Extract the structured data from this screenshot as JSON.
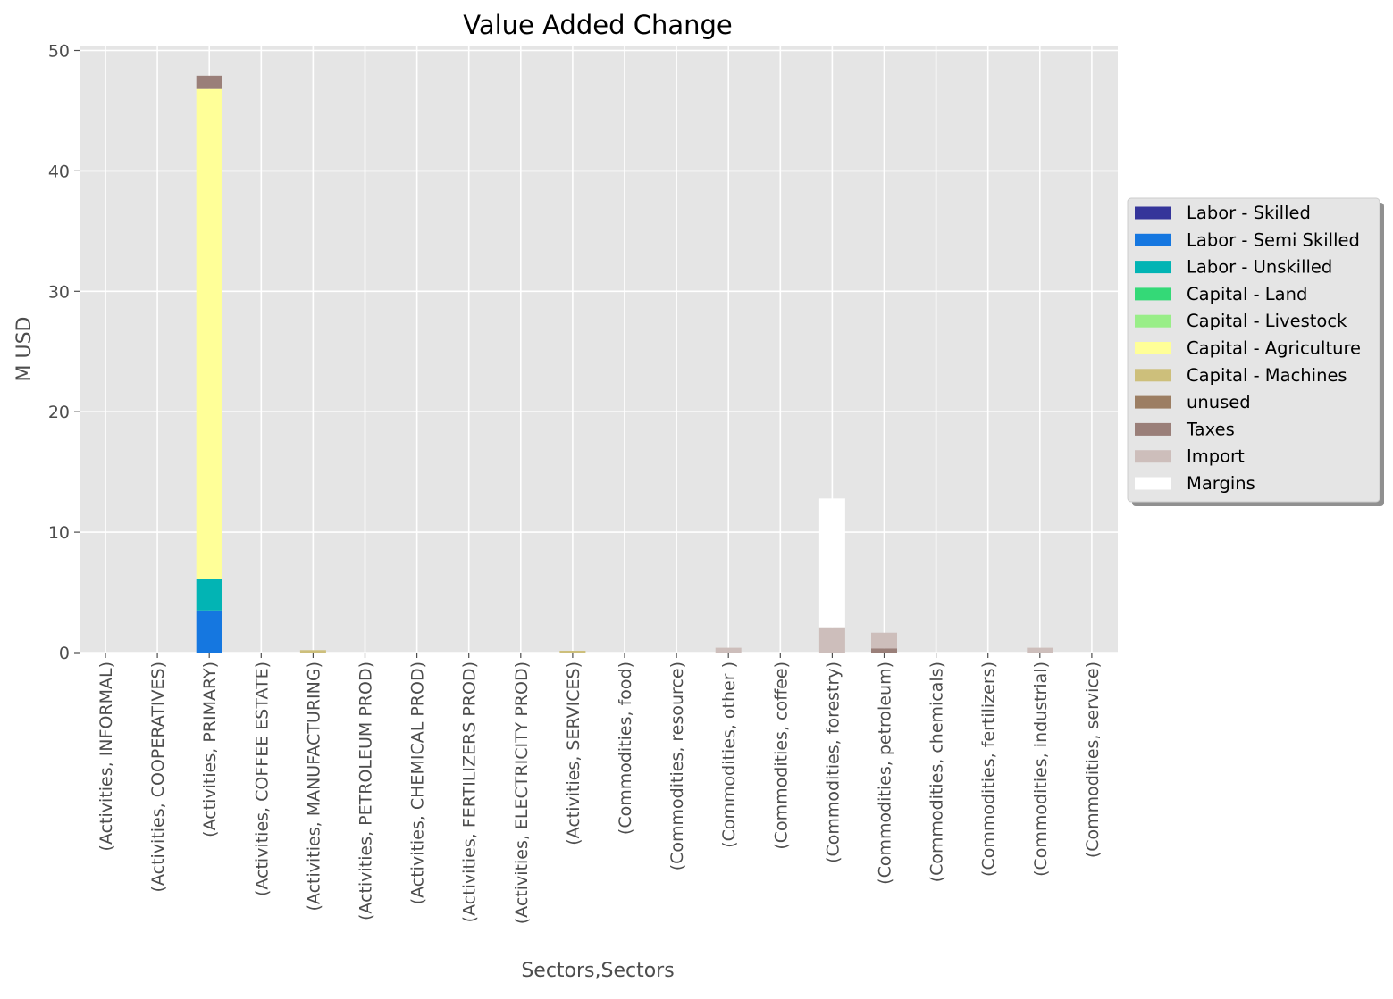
{
  "chart_data": {
    "type": "bar",
    "stacked": true,
    "title": "Value Added Change",
    "xlabel": "Sectors,Sectors",
    "ylabel": "M USD",
    "ylim": [
      0,
      50
    ],
    "yticks": [
      0,
      10,
      20,
      30,
      40,
      50
    ],
    "grid": true,
    "legend_position": "right",
    "categories": [
      "(Activities, INFORMAL)",
      "(Activities, COOPERATIVES)",
      "(Activities, PRIMARY)",
      "(Activities, COFFEE ESTATE)",
      "(Activities, MANUFACTURING)",
      "(Activities, PETROLEUM PROD)",
      "(Activities, CHEMICAL PROD)",
      "(Activities, FERTILIZERS PROD)",
      "(Activities, ELECTRICITY PROD)",
      "(Activities, SERVICES)",
      "(Commodities, food)",
      "(Commodities, resource)",
      "(Commodities, other  )",
      "(Commodities, coffee)",
      "(Commodities, forestry)",
      "(Commodities, petroleum)",
      "(Commodities, chemicals)",
      "(Commodities, fertilizers)",
      "(Commodities, industrial)",
      "(Commodities, service)"
    ],
    "series": [
      {
        "name": "Labor - Skilled",
        "color": "#35359a",
        "values": [
          0,
          0,
          0,
          0,
          0,
          0,
          0,
          0,
          0,
          0,
          0,
          0,
          0,
          0,
          0,
          0,
          0,
          0,
          0,
          0
        ]
      },
      {
        "name": "Labor - Semi Skilled",
        "color": "#1577e0",
        "values": [
          0,
          0,
          3.5,
          0,
          0,
          0,
          0,
          0,
          0,
          0,
          0,
          0,
          0,
          0,
          0,
          0,
          0,
          0,
          0,
          0
        ]
      },
      {
        "name": "Labor - Unskilled",
        "color": "#02b4b4",
        "values": [
          0,
          0,
          2.6,
          0,
          0,
          0,
          0,
          0,
          0,
          0,
          0,
          0,
          0,
          0,
          0,
          0,
          0,
          0,
          0,
          0
        ]
      },
      {
        "name": "Capital - Land",
        "color": "#34d977",
        "values": [
          0,
          0,
          0,
          0,
          0,
          0,
          0,
          0,
          0,
          0,
          0,
          0,
          0,
          0,
          0,
          0,
          0,
          0,
          0,
          0
        ]
      },
      {
        "name": "Capital - Livestock",
        "color": "#99ee88",
        "values": [
          0,
          0,
          0,
          0,
          0,
          0,
          0,
          0,
          0,
          0,
          0,
          0,
          0,
          0,
          0,
          0,
          0,
          0,
          0,
          0
        ]
      },
      {
        "name": "Capital - Agriculture",
        "color": "#ffff98",
        "values": [
          0,
          0,
          40.7,
          0,
          0,
          0,
          0,
          0,
          0,
          0,
          0,
          0,
          0,
          0,
          0,
          0,
          0,
          0,
          0,
          0
        ]
      },
      {
        "name": "Capital - Machines",
        "color": "#cdbf7b",
        "values": [
          0,
          0,
          0,
          0,
          0.2,
          0,
          0,
          0,
          0,
          0.15,
          0,
          0,
          0,
          0,
          0,
          0,
          0,
          0,
          0,
          0
        ]
      },
      {
        "name": "unused",
        "color": "#9c7e63",
        "values": [
          0,
          0,
          0,
          0,
          0,
          0,
          0,
          0,
          0,
          0,
          0,
          0,
          0,
          0,
          0,
          0,
          0,
          0,
          0,
          0
        ]
      },
      {
        "name": "Taxes",
        "color": "#9a7f79",
        "values": [
          0,
          0,
          1.1,
          0,
          0,
          0,
          0,
          0,
          0,
          0,
          0,
          0,
          0,
          0,
          0,
          0.35,
          0,
          0,
          0,
          0
        ]
      },
      {
        "name": "Import",
        "color": "#cdbebb",
        "values": [
          0,
          0,
          0,
          0,
          0,
          0,
          0,
          0,
          0,
          0,
          0,
          0,
          0.4,
          0,
          2.1,
          1.3,
          0,
          0,
          0.4,
          0
        ]
      },
      {
        "name": "Margins",
        "color": "#ffffff",
        "values": [
          0,
          0,
          0,
          0,
          0,
          0,
          0,
          0,
          0,
          0,
          0,
          0,
          0,
          0,
          10.7,
          0,
          0,
          0,
          0,
          0
        ]
      }
    ]
  }
}
